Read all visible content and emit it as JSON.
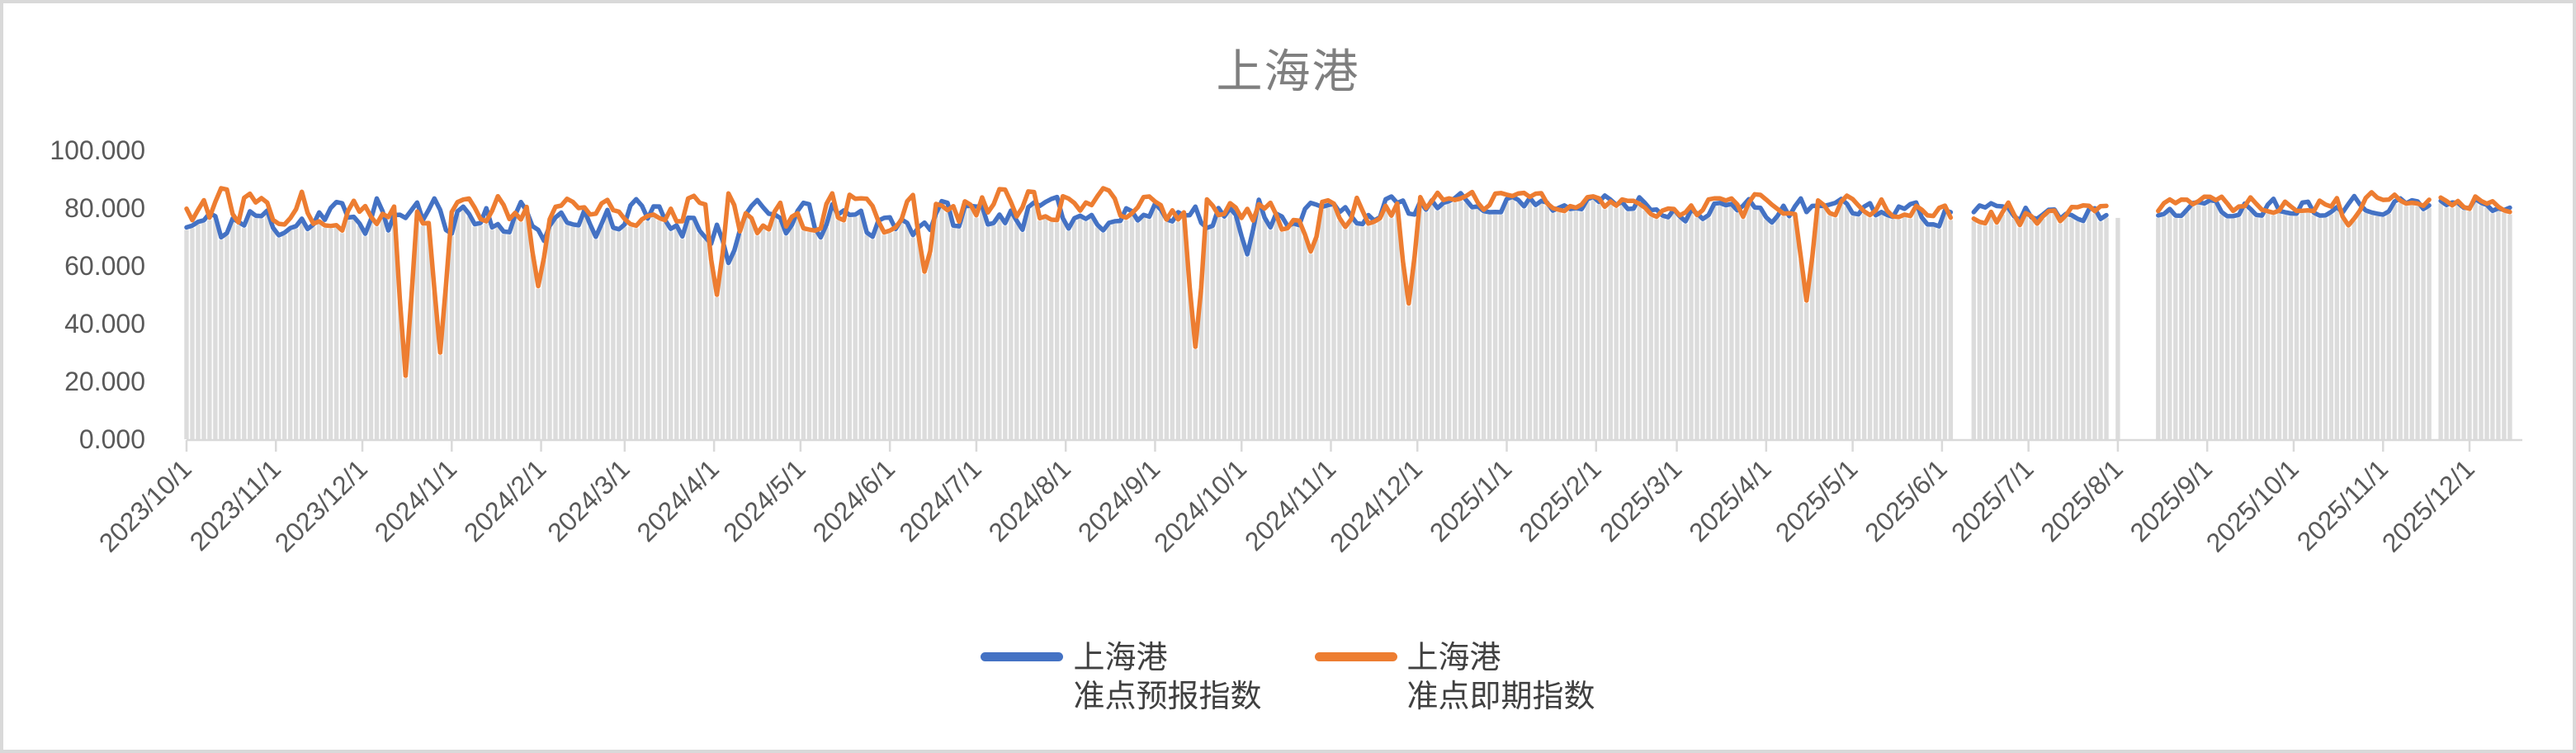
{
  "chart_data": {
    "type": "line",
    "title": "上海港",
    "ylabel": "",
    "xlabel": "",
    "y_axis": {
      "min": 0,
      "max": 100,
      "tick_values": [
        100,
        80,
        60,
        40,
        20,
        0
      ],
      "tick_labels": [
        "100.000",
        "80.000",
        "60.000",
        "40.000",
        "20.000",
        "0.000"
      ]
    },
    "x_axis": {
      "start_date": "2023/10/1",
      "end_date": "2025/12/15",
      "tick_labels": [
        "2023/10/1",
        "2023/11/1",
        "2023/12/1",
        "2024/1/1",
        "2024/2/1",
        "2024/3/1",
        "2024/4/1",
        "2024/5/1",
        "2024/6/1",
        "2024/7/1",
        "2024/8/1",
        "2024/9/1",
        "2024/10/1",
        "2024/11/1",
        "2024/12/1",
        "2025/1/1",
        "2025/2/1",
        "2025/3/1",
        "2025/4/1",
        "2025/5/1",
        "2025/6/1",
        "2025/7/1",
        "2025/8/1",
        "2025/9/1",
        "2025/10/1",
        "2025/11/1",
        "2025/12/1"
      ]
    },
    "point_interval_days": 2,
    "value_cap": 89,
    "grid": false,
    "legend_position": "bottom-center",
    "legend": [
      {
        "line1": "上海港",
        "line2": "准点预报指数"
      },
      {
        "line1": "上海港",
        "line2": "准点即期指数"
      }
    ],
    "series": [
      {
        "name": "上海港 准点预报指数",
        "color": "#4472C4",
        "monthly_mean": [
          73,
          76,
          77,
          78,
          75,
          77,
          75,
          76,
          75,
          78,
          78,
          78,
          79,
          78,
          80,
          82,
          82,
          80,
          79,
          80,
          78,
          78,
          79,
          80,
          81,
          81,
          81
        ],
        "monthly_amp": [
          6,
          6,
          6,
          6,
          7,
          6,
          7,
          6,
          6,
          5,
          5,
          5,
          5,
          5,
          4,
          3,
          3,
          4,
          4,
          3,
          4,
          4,
          3,
          3,
          3,
          3,
          3
        ]
      },
      {
        "name": "上海港 准点即期指数",
        "color": "#ED7D31",
        "monthly_mean": [
          81,
          81,
          79,
          80,
          78,
          81,
          79,
          79,
          79,
          81,
          80,
          79,
          78,
          79,
          81,
          83,
          82,
          80,
          80,
          81,
          78,
          77,
          79,
          81,
          82,
          82,
          82
        ],
        "monthly_amp": [
          6,
          6,
          7,
          6,
          7,
          6,
          7,
          7,
          7,
          6,
          6,
          6,
          6,
          6,
          4,
          3,
          3,
          4,
          4,
          3,
          4,
          4,
          3,
          3,
          3,
          3,
          3
        ]
      }
    ],
    "notable_dips": [
      {
        "date": "2023/12/15",
        "series": 1,
        "value": 22
      },
      {
        "date": "2023/12/28",
        "series": 1,
        "value": 30
      },
      {
        "date": "2024/1/30",
        "series": 1,
        "value": 53
      },
      {
        "date": "2024/4/1",
        "series": 1,
        "value": 50
      },
      {
        "date": "2024/6/13",
        "series": 1,
        "value": 58
      },
      {
        "date": "2024/9/14",
        "series": 1,
        "value": 32
      },
      {
        "date": "2024/10/25",
        "series": 1,
        "value": 65
      },
      {
        "date": "2024/11/27",
        "series": 1,
        "value": 47
      },
      {
        "date": "2025/4/15",
        "series": 1,
        "value": 48
      },
      {
        "date": "2025/10/19",
        "series": 1,
        "value": 74
      },
      {
        "date": "2024/4/5",
        "series": 0,
        "value": 61
      },
      {
        "date": "2024/10/2",
        "series": 0,
        "value": 64
      }
    ],
    "data_gaps": [
      {
        "from": "2025/6/5",
        "to": "2025/6/10"
      },
      {
        "from": "2025/7/29",
        "to": "2025/7/30"
      },
      {
        "from": "2025/8/3",
        "to": "2025/8/13"
      },
      {
        "from": "2025/11/18",
        "to": "2025/11/19"
      }
    ],
    "background_bars_color": "#dcdcdc",
    "axis_color": "#d9d9d9",
    "tick_text_color": "#595959",
    "title_color": "#7f7f7f"
  }
}
